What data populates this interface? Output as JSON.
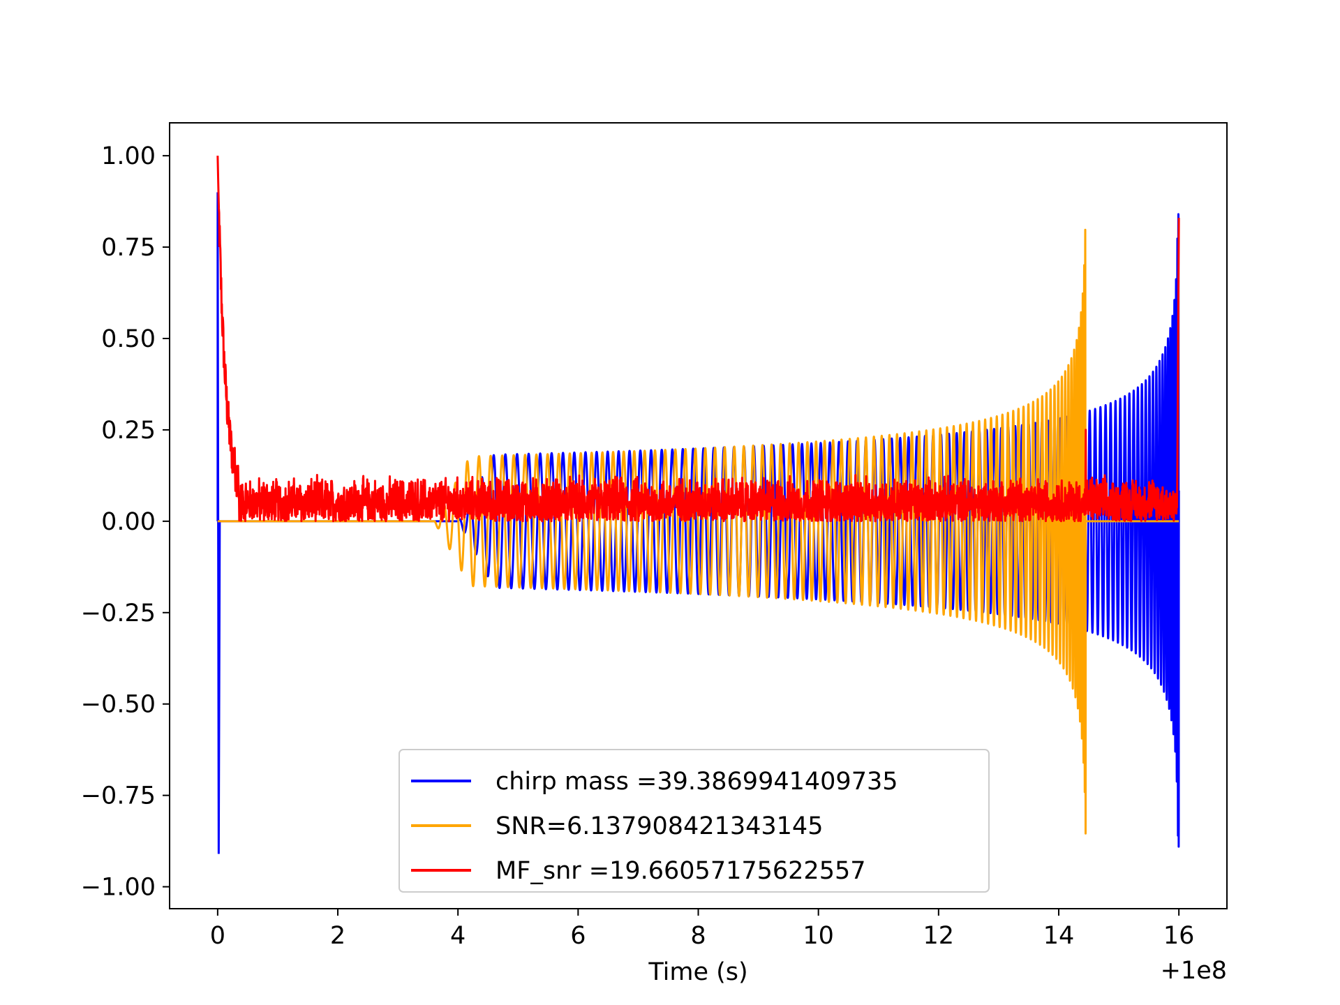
{
  "chart_data": {
    "type": "line",
    "title": "",
    "xlabel": "Time (s)",
    "ylabel": "",
    "x_offset_label": "+1e8",
    "xlim": [
      -0.8,
      16.8
    ],
    "ylim": [
      -1.06,
      1.09
    ],
    "x_ticks": [
      0,
      2,
      4,
      6,
      8,
      10,
      12,
      14,
      16
    ],
    "x_tick_labels": [
      "0",
      "2",
      "4",
      "6",
      "8",
      "10",
      "12",
      "14",
      "16"
    ],
    "y_ticks": [
      1.0,
      0.75,
      0.5,
      0.25,
      0.0,
      -0.25,
      -0.5,
      -0.75,
      -1.0
    ],
    "y_tick_labels": [
      "1.00",
      "0.75",
      "0.50",
      "0.25",
      "0.00",
      "−0.25",
      "−0.50",
      "−0.75",
      "−1.00"
    ],
    "grid": false,
    "legend_position": "lower center",
    "series": [
      {
        "name": "chirp mass =39.3869941409735",
        "color": "#0000ff",
        "shape": "chirp",
        "x_start": 0.0,
        "x_end": 16.0,
        "onset": 4.0,
        "plateau_amplitude": 0.18,
        "late_amplitude": 0.28,
        "spike_at_start": [
          0.9,
          -0.91
        ],
        "peak_at_end": [
          0.84,
          -0.93
        ]
      },
      {
        "name": "SNR=6.137908421343145",
        "color": "#ffa500",
        "shape": "chirp",
        "x_start": 0.0,
        "x_end": 14.45,
        "onset": 3.6,
        "plateau_amplitude": 0.175,
        "peak_at_end": [
          1.0,
          -0.95
        ]
      },
      {
        "name": "MF_snr =19.66057175622557",
        "color": "#ff0000",
        "shape": "noise",
        "x_start": 0.0,
        "x_end": 16.0,
        "start_value": 1.0,
        "decay_to": 0.06,
        "noise_band": [
          0.0,
          0.13
        ],
        "spike_near_14_5": 0.25,
        "end_value": 0.83
      }
    ]
  }
}
